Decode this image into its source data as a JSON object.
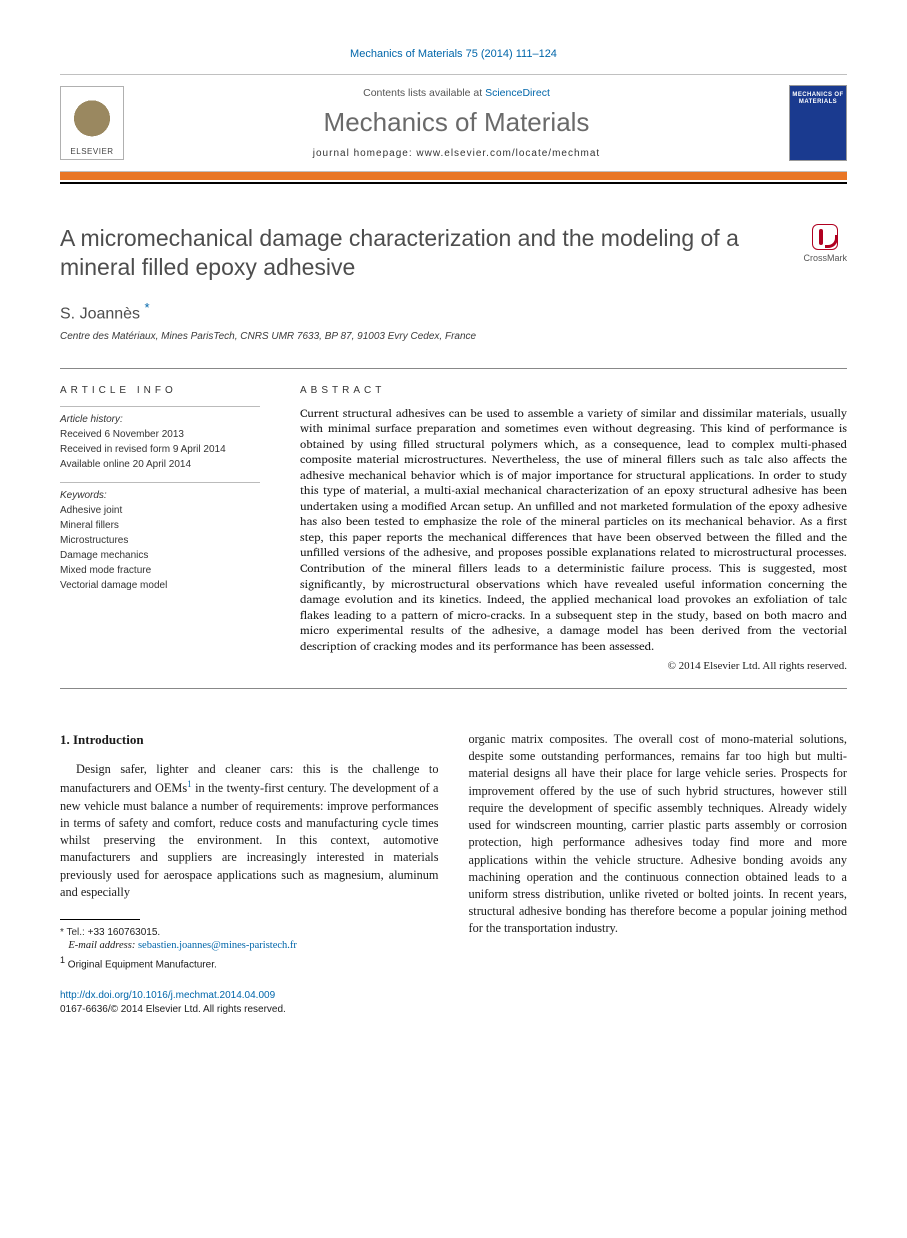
{
  "header": {
    "citation": "Mechanics of Materials 75 (2014) 111–124",
    "contents_prefix": "Contents lists available at ",
    "sciencedirect": "ScienceDirect",
    "journal_name": "Mechanics of Materials",
    "homepage_label": "journal homepage: www.elsevier.com/locate/mechmat",
    "elsevier": "ELSEVIER",
    "cover_text": "MECHANICS OF MATERIALS",
    "crossmark": "CrossMark"
  },
  "title": "A micromechanical damage characterization and the modeling of a mineral filled epoxy adhesive",
  "author": "S. Joannès",
  "author_mark": "*",
  "affiliation": "Centre des Matériaux, Mines ParisTech, CNRS UMR 7633, BP 87, 91003 Evry Cedex, France",
  "article_info": {
    "heading": "ARTICLE INFO",
    "history_label": "Article history:",
    "history": [
      "Received 6 November 2013",
      "Received in revised form 9 April 2014",
      "Available online 20 April 2014"
    ],
    "keywords_label": "Keywords:",
    "keywords": [
      "Adhesive joint",
      "Mineral fillers",
      "Microstructures",
      "Damage mechanics",
      "Mixed mode fracture",
      "Vectorial damage model"
    ]
  },
  "abstract": {
    "heading": "ABSTRACT",
    "text": "Current structural adhesives can be used to assemble a variety of similar and dissimilar materials, usually with minimal surface preparation and sometimes even without degreasing. This kind of performance is obtained by using filled structural polymers which, as a consequence, lead to complex multi-phased composite material microstructures. Nevertheless, the use of mineral fillers such as talc also affects the adhesive mechanical behavior which is of major importance for structural applications. In order to study this type of material, a multi-axial mechanical characterization of an epoxy structural adhesive has been undertaken using a modified Arcan setup. An unfilled and not marketed formulation of the epoxy adhesive has also been tested to emphasize the role of the mineral particles on its mechanical behavior. As a first step, this paper reports the mechanical differences that have been observed between the filled and the unfilled versions of the adhesive, and proposes possible explanations related to microstructural processes. Contribution of the mineral fillers leads to a deterministic failure process. This is suggested, most significantly, by microstructural observations which have revealed useful information concerning the damage evolution and its kinetics. Indeed, the applied mechanical load provokes an exfoliation of talc flakes leading to a pattern of micro-cracks. In a subsequent step in the study, based on both macro and micro experimental results of the adhesive, a damage model has been derived from the vectorial description of cracking modes and its performance has been assessed.",
    "copyright": "© 2014 Elsevier Ltd. All rights reserved."
  },
  "body": {
    "section_heading": "1. Introduction",
    "para1_a": "Design safer, lighter and cleaner cars: this is the challenge to manufacturers and OEMs",
    "para1_b": " in the twenty-first century. The development of a new vehicle must balance a number of requirements: improve performances in terms of safety and comfort, reduce costs and manufacturing cycle times whilst preserving the environment. In this context, automotive manufacturers and suppliers are increasingly interested in materials previously used for aerospace applications such as magnesium, aluminum and especially",
    "para2": "organic matrix composites. The overall cost of mono-material solutions, despite some outstanding performances, remains far too high but multi-material designs all have their place for large vehicle series. Prospects for improvement offered by the use of such hybrid structures, however still require the development of specific assembly techniques. Already widely used for windscreen mounting, carrier plastic parts assembly or corrosion protection, high performance adhesives today find more and more applications within the vehicle structure. Adhesive bonding avoids any machining operation and the continuous connection obtained leads to a uniform stress distribution, unlike riveted or bolted joints. In recent years, structural adhesive bonding has therefore become a popular joining method for the transportation industry."
  },
  "footnotes": {
    "tel_label": "* Tel.: ",
    "tel": "+33 160763015.",
    "email_label": "E-mail address: ",
    "email": "sebastien.joannes@mines-paristech.fr",
    "fn1_num": "1",
    "fn1": " Original Equipment Manufacturer."
  },
  "doi": {
    "link": "http://dx.doi.org/10.1016/j.mechmat.2014.04.009",
    "issn_line": "0167-6636/© 2014 Elsevier Ltd. All rights reserved."
  },
  "colors": {
    "link": "#0066aa",
    "orange": "#e97625",
    "grey_title": "#4d4d4d",
    "cover_blue": "#1a3a8f"
  }
}
